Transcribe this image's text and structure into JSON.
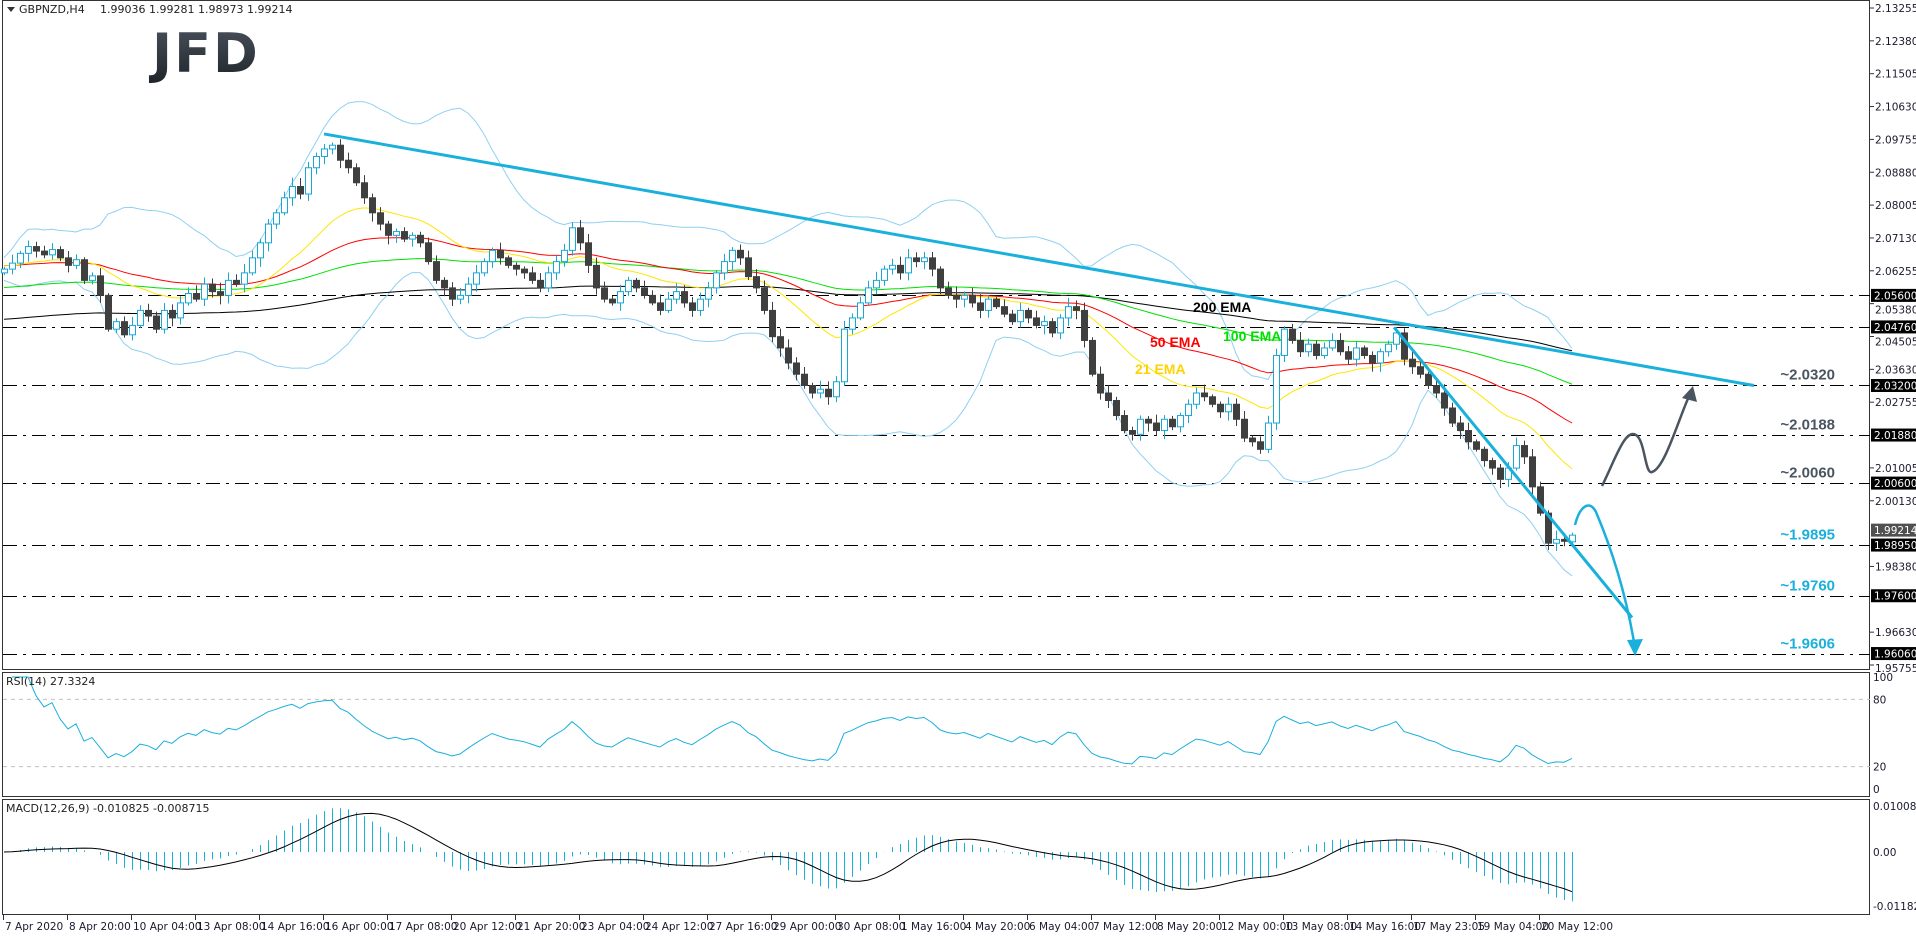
{
  "header": {
    "symbol": "GBPNZD,H4",
    "ohlc": "1.99036 1.99281 1.98973 1.99214",
    "menu_icon": "triangle-down-icon"
  },
  "logo": "JFD",
  "colors": {
    "bull": "#1aa7d6",
    "bear": "#3f3f3f",
    "bollinger": "#8fd0f2",
    "ema21": "#ffe600",
    "ema50": "#ff0000",
    "ema100": "#00e000",
    "ema200": "#000000",
    "trendline": "#1ab0dc",
    "bullish_scenario": "#4a5560",
    "bearish_scenario": "#1ab0dc",
    "rsi": "#1ab0dc",
    "macd_hist": "#1ab0dc",
    "macd_signal": "#000000"
  },
  "chart_data": {
    "type": "candlestick",
    "title": "GBPNZD,H4",
    "timeframe": "H4",
    "last_bar": {
      "open": 1.99036,
      "high": 1.99281,
      "low": 1.98973,
      "close": 1.99214
    },
    "current_price": "1.99214",
    "closes": [
      2.063,
      2.0646,
      2.0672,
      2.069,
      2.0678,
      2.0668,
      2.0682,
      2.066,
      2.064,
      2.0655,
      2.06,
      2.0612,
      2.056,
      2.047,
      2.049,
      2.0455,
      2.048,
      2.052,
      2.0505,
      2.047,
      2.052,
      2.05,
      2.054,
      2.0565,
      2.055,
      2.059,
      2.057,
      2.056,
      2.06,
      2.059,
      2.062,
      2.066,
      2.07,
      2.075,
      2.078,
      2.082,
      2.085,
      2.083,
      2.09,
      2.093,
      2.095,
      2.096,
      2.092,
      2.09,
      2.086,
      2.082,
      2.078,
      2.075,
      2.072,
      2.073,
      2.071,
      2.072,
      2.07,
      2.065,
      2.06,
      2.058,
      2.055,
      2.056,
      2.059,
      2.062,
      2.065,
      2.068,
      2.066,
      2.064,
      2.063,
      2.062,
      2.06,
      2.058,
      2.062,
      2.065,
      2.068,
      2.074,
      2.07,
      2.064,
      2.058,
      2.055,
      2.054,
      2.057,
      2.06,
      2.058,
      2.056,
      2.054,
      2.052,
      2.055,
      2.057,
      2.054,
      2.052,
      2.055,
      2.058,
      2.062,
      2.065,
      2.068,
      2.066,
      2.061,
      2.058,
      2.052,
      2.045,
      2.042,
      2.038,
      2.035,
      2.032,
      2.03,
      2.031,
      2.029,
      2.033,
      2.047,
      2.05,
      2.054,
      2.058,
      2.06,
      2.063,
      2.064,
      2.062,
      2.066,
      2.065,
      2.066,
      2.063,
      2.058,
      2.056,
      2.055,
      2.056,
      2.054,
      2.052,
      2.055,
      2.053,
      2.051,
      2.049,
      2.052,
      2.05,
      2.048,
      2.049,
      2.046,
      2.05,
      2.053,
      2.052,
      2.044,
      2.035,
      2.03,
      2.028,
      2.024,
      2.02,
      2.019,
      2.023,
      2.022,
      2.02,
      2.023,
      2.021,
      2.024,
      2.027,
      2.03,
      2.029,
      2.027,
      2.025,
      2.027,
      2.023,
      2.018,
      2.017,
      2.015,
      2.022,
      2.04,
      2.047,
      2.044,
      2.041,
      2.043,
      2.04,
      2.042,
      2.044,
      2.041,
      2.039,
      2.042,
      2.04,
      2.038,
      2.041,
      2.043,
      2.046,
      2.039,
      2.037,
      2.035,
      2.032,
      2.03,
      2.026,
      2.022,
      2.02,
      2.017,
      2.015,
      2.012,
      2.01,
      2.007,
      2.01,
      2.016,
      2.013,
      2.005,
      1.998,
      1.99,
      1.991,
      1.9905,
      1.9921
    ],
    "price_axis": {
      "ylim": [
        1.95755,
        2.13255
      ],
      "ticks": [
        "2.13255",
        "2.12380",
        "2.11505",
        "2.10630",
        "2.09755",
        "2.08880",
        "2.08005",
        "2.07130",
        "2.06255",
        "2.05380",
        "2.04505",
        "2.03630",
        "2.02755",
        "2.01005",
        "2.00130",
        "1.98380",
        "1.96630",
        "1.95755"
      ]
    },
    "time_axis": {
      "labels": [
        "7 Apr 2020",
        "8 Apr 20:00",
        "10 Apr 04:00",
        "13 Apr 08:00",
        "14 Apr 16:00",
        "16 Apr 00:00",
        "17 Apr 08:00",
        "20 Apr 12:00",
        "21 Apr 20:00",
        "23 Apr 04:00",
        "24 Apr 12:00",
        "27 Apr 16:00",
        "29 Apr 00:00",
        "30 Apr 08:00",
        "1 May 16:00",
        "4 May 20:00",
        "6 May 04:00",
        "7 May 12:00",
        "8 May 20:00",
        "12 May 00:00",
        "13 May 08:00",
        "14 May 16:00",
        "17 May 23:05",
        "19 May 04:00",
        "20 May 12:00"
      ]
    },
    "levels": [
      {
        "price": 2.056,
        "axis_label": "2.05600"
      },
      {
        "price": 2.0476,
        "axis_label": "2.04760"
      },
      {
        "price": 2.032,
        "axis_label": "2.03200",
        "annotation": "~2.0320",
        "color": "#4a5560"
      },
      {
        "price": 2.0188,
        "axis_label": "2.01880",
        "annotation": "~2.0188",
        "color": "#4a5560"
      },
      {
        "price": 2.006,
        "axis_label": "2.00600",
        "annotation": "~2.0060",
        "color": "#4a5560"
      },
      {
        "price": 1.9895,
        "axis_label": "1.98950",
        "annotation": "~1.9895",
        "color": "#1ab0dc"
      },
      {
        "price": 1.976,
        "axis_label": "1.97600",
        "annotation": "~1.9760",
        "color": "#1ab0dc"
      },
      {
        "price": 1.9606,
        "axis_label": "1.96060",
        "annotation": "~1.9606",
        "color": "#1ab0dc"
      }
    ],
    "indicators": {
      "ema_labels": {
        "ema200": "200 EMA",
        "ema100": "100 EMA",
        "ema50": "50 EMA",
        "ema21": "21 EMA"
      },
      "bollinger": {
        "period": 20,
        "deviations": 2
      }
    },
    "trendlines": [
      {
        "from": {
          "time": "16 Apr 00:00",
          "price": 2.099
        },
        "to": {
          "price": 2.032
        }
      },
      {
        "from": {
          "price": 2.0475
        },
        "to": {
          "price": 1.9702
        }
      }
    ],
    "rsi": {
      "label": "RSI(14) 27.3324",
      "period": 14,
      "value": 27.3324,
      "ylim": [
        0,
        100
      ],
      "ticks": [
        "100",
        "80",
        "20",
        "0"
      ],
      "levels": [
        80,
        20
      ]
    },
    "macd": {
      "label": "MACD(12,26,9) -0.010825 -0.008715",
      "main": -0.010825,
      "signal": -0.008715,
      "ylim": [
        -0.011821,
        0.010086
      ],
      "ticks": [
        "0.010086",
        "0.00",
        "-0.011821"
      ]
    }
  }
}
